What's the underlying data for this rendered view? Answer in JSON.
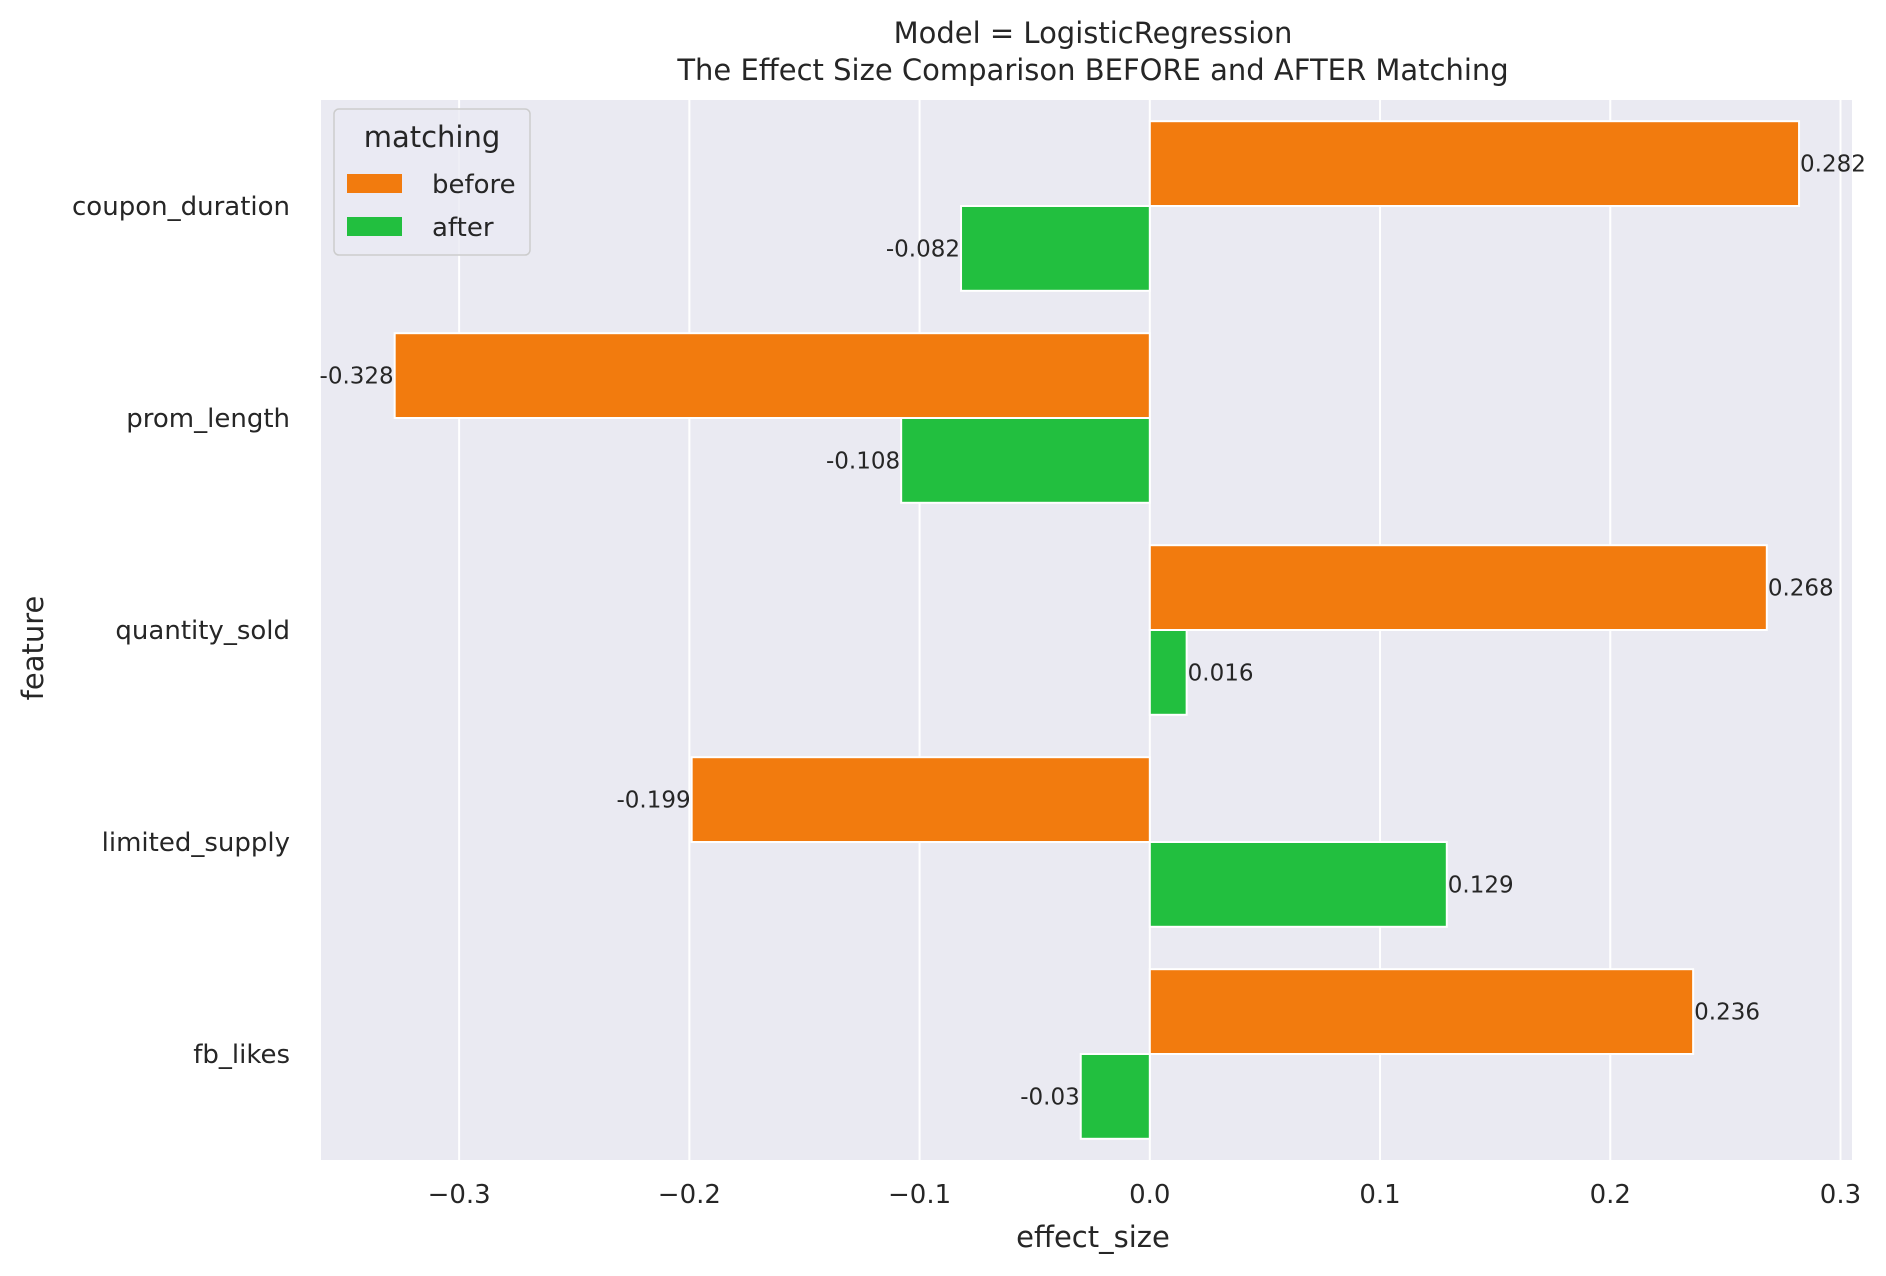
{
  "chart_data": {
    "type": "bar",
    "orientation": "horizontal",
    "title_lines": [
      "Model = LogisticRegression",
      "The Effect Size Comparison BEFORE and AFTER Matching"
    ],
    "xlabel": "effect_size",
    "ylabel": "feature",
    "xlim": [
      -0.36,
      0.305
    ],
    "xticks": [
      -0.3,
      -0.2,
      -0.1,
      0.0,
      0.1,
      0.2,
      0.3
    ],
    "xtick_labels": [
      "−0.3",
      "−0.2",
      "−0.1",
      "0.0",
      "0.1",
      "0.2",
      "0.3"
    ],
    "grid": true,
    "categories": [
      "coupon_duration",
      "prom_length",
      "quantity_sold",
      "limited_supply",
      "fb_likes"
    ],
    "series": [
      {
        "name": "before",
        "color": "#f27b0e",
        "values": [
          0.282,
          -0.328,
          0.268,
          -0.199,
          0.236
        ],
        "labels": [
          "0.282",
          "-0.328",
          "0.268",
          "-0.199",
          "0.236"
        ]
      },
      {
        "name": "after",
        "color": "#22bf3f",
        "values": [
          -0.082,
          -0.108,
          0.016,
          0.129,
          -0.03
        ],
        "labels": [
          "-0.082",
          "-0.108",
          "0.016",
          "0.129",
          "-0.03"
        ]
      }
    ],
    "legend": {
      "title": "matching",
      "placement": "upper-left"
    },
    "colors": {
      "plot_background": "#eaeaf2",
      "grid": "#ffffff",
      "text": "#262626"
    }
  }
}
